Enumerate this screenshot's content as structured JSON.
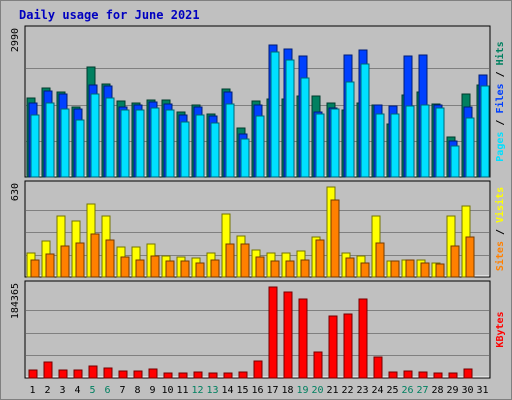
{
  "chart_data": {
    "type": "bar",
    "title": "Daily usage for June 2021",
    "categories": [
      "1",
      "2",
      "3",
      "4",
      "5",
      "6",
      "7",
      "8",
      "9",
      "10",
      "11",
      "12",
      "13",
      "14",
      "15",
      "16",
      "17",
      "18",
      "19",
      "20",
      "21",
      "22",
      "23",
      "24",
      "25",
      "26",
      "27",
      "28",
      "29",
      "30",
      "31"
    ],
    "weekend_days": [
      "5",
      "6",
      "12",
      "13",
      "19",
      "20",
      "26",
      "27"
    ],
    "panels": [
      {
        "id": "hits_files_pages",
        "ymax_label": "2990",
        "ylim": [
          0,
          2990
        ],
        "legend_words": [
          "Pages",
          "Files",
          "Hits"
        ],
        "legend_colors": [
          "#00e0ff",
          "#0040ff",
          "#008060"
        ],
        "series": [
          {
            "name": "Hits",
            "color": "#008060",
            "values": [
              1620,
              1840,
              1750,
              1440,
              2260,
              1910,
              1560,
              1530,
              1580,
              1580,
              1340,
              1490,
              1300,
              1810,
              1020,
              1560,
              1600,
              1600,
              1680,
              1660,
              1530,
              1380,
              1530,
              1480,
              1100,
              1690,
              1760,
              1500,
              820,
              1720,
              1890
            ]
          },
          {
            "name": "Files",
            "color": "#0040ff",
            "values": [
              1520,
              1780,
              1720,
              1410,
              1900,
              1870,
              1450,
              1480,
              1540,
              1500,
              1280,
              1440,
              1250,
              1760,
              890,
              1480,
              2720,
              2640,
              2500,
              1350,
              1420,
              2520,
              2610,
              1490,
              1470,
              2500,
              2520,
              1480,
              740,
              1440,
              2100
            ]
          },
          {
            "name": "Pages",
            "color": "#00e0ff",
            "values": [
              1280,
              1520,
              1410,
              1170,
              1720,
              1620,
              1390,
              1380,
              1420,
              1380,
              1140,
              1280,
              1120,
              1510,
              780,
              1260,
              2570,
              2410,
              2040,
              1300,
              1400,
              1960,
              2340,
              1290,
              1300,
              1470,
              1490,
              1420,
              640,
              1210,
              1880
            ]
          }
        ]
      },
      {
        "id": "visits_sites",
        "ymax_label": "630",
        "ylim": [
          0,
          630
        ],
        "legend_words": [
          "Sites",
          "Visits"
        ],
        "legend_colors": [
          "#ff8000",
          "#ffff00"
        ],
        "series": [
          {
            "name": "Visits",
            "color": "#ffff00",
            "values": [
              170,
              250,
              430,
              390,
              510,
              430,
              210,
              210,
              230,
              150,
              140,
              130,
              170,
              440,
              290,
              190,
              170,
              170,
              180,
              280,
              630,
              170,
              150,
              430,
              110,
              120,
              120,
              100,
              430,
              500,
              0
            ]
          },
          {
            "name": "Sites",
            "color": "#ff8000",
            "values": [
              120,
              160,
              220,
              240,
              300,
              260,
              140,
              120,
              150,
              110,
              110,
              100,
              120,
              230,
              230,
              140,
              110,
              110,
              120,
              260,
              540,
              130,
              100,
              240,
              110,
              120,
              100,
              90,
              220,
              280,
              0
            ]
          }
        ]
      },
      {
        "id": "kbytes",
        "ymax_label": "184365",
        "ylim": [
          0,
          184365
        ],
        "legend_words": [
          "KBytes"
        ],
        "legend_colors": [
          "#ff0000"
        ],
        "series": [
          {
            "name": "KBytes",
            "color": "#ff0000",
            "values": [
              17000,
              32000,
              17000,
              17000,
              24000,
              21000,
              15000,
              15000,
              18000,
              11000,
              11000,
              12000,
              11000,
              11000,
              12000,
              34000,
              184000,
              175000,
              160000,
              53000,
              125000,
              130000,
              161000,
              42000,
              13000,
              14000,
              13000,
              11000,
              11000,
              18000,
              0
            ]
          }
        ]
      }
    ]
  }
}
